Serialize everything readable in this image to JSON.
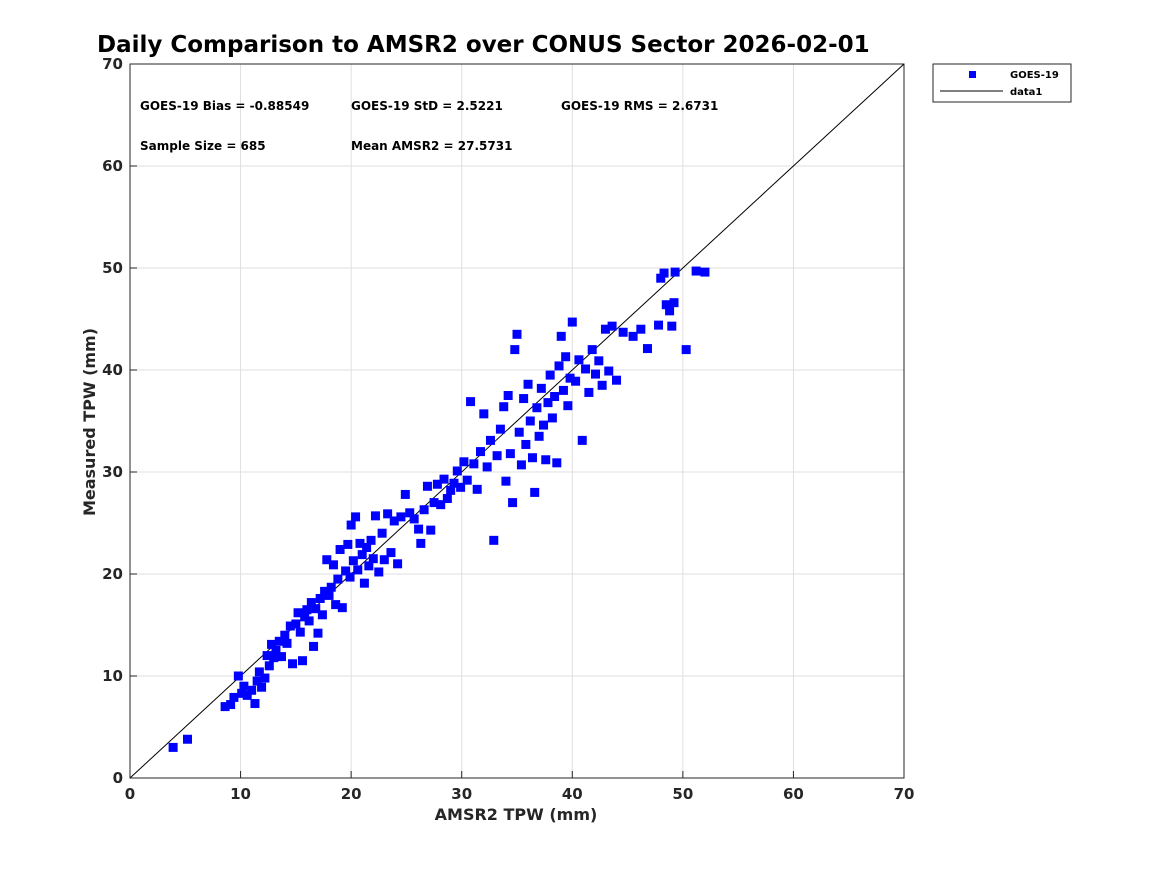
{
  "chart_data": {
    "type": "scatter",
    "title": "Daily Comparison to AMSR2 over CONUS Sector 2026-02-01",
    "xlabel": "AMSR2 TPW (mm)",
    "ylabel": "Measured TPW (mm)",
    "xlim": [
      0,
      70
    ],
    "ylim": [
      0,
      70
    ],
    "xticks": [
      "0",
      "10",
      "20",
      "30",
      "40",
      "50",
      "60",
      "70"
    ],
    "yticks": [
      "0",
      "10",
      "20",
      "30",
      "40",
      "50",
      "60",
      "70"
    ],
    "grid": true,
    "legend_position": "outside-top-right",
    "stats": {
      "bias": "GOES-19 Bias = -0.88549",
      "std": "GOES-19 StD = 2.5221",
      "rms": "GOES-19 RMS = 2.6731",
      "sample_size": "Sample Size = 685",
      "mean": "Mean AMSR2 = 27.5731"
    },
    "series": [
      {
        "name": "GOES-19",
        "marker": "square",
        "color": "#0000ff",
        "points": [
          [
            3.9,
            3.0
          ],
          [
            5.2,
            3.8
          ],
          [
            8.6,
            7.0
          ],
          [
            9.1,
            7.2
          ],
          [
            9.4,
            7.9
          ],
          [
            9.8,
            10.0
          ],
          [
            10.1,
            8.3
          ],
          [
            10.3,
            9.0
          ],
          [
            10.6,
            8.1
          ],
          [
            11.0,
            8.6
          ],
          [
            11.3,
            7.3
          ],
          [
            11.5,
            9.5
          ],
          [
            11.7,
            10.4
          ],
          [
            11.9,
            8.9
          ],
          [
            12.2,
            9.8
          ],
          [
            12.4,
            12.0
          ],
          [
            12.6,
            11.0
          ],
          [
            12.8,
            13.1
          ],
          [
            13.0,
            11.8
          ],
          [
            13.2,
            12.5
          ],
          [
            13.5,
            13.4
          ],
          [
            13.7,
            11.9
          ],
          [
            14.0,
            14.0
          ],
          [
            14.2,
            13.2
          ],
          [
            14.5,
            14.9
          ],
          [
            14.7,
            11.2
          ],
          [
            15.0,
            15.1
          ],
          [
            15.2,
            16.2
          ],
          [
            15.4,
            14.3
          ],
          [
            15.6,
            11.5
          ],
          [
            15.8,
            15.8
          ],
          [
            16.0,
            16.5
          ],
          [
            16.2,
            15.4
          ],
          [
            16.4,
            17.2
          ],
          [
            16.6,
            12.9
          ],
          [
            16.8,
            16.6
          ],
          [
            17.0,
            14.2
          ],
          [
            17.2,
            17.6
          ],
          [
            17.4,
            16.0
          ],
          [
            17.6,
            18.3
          ],
          [
            17.8,
            21.4
          ],
          [
            18.0,
            17.9
          ],
          [
            18.2,
            18.7
          ],
          [
            18.4,
            20.9
          ],
          [
            18.6,
            17.0
          ],
          [
            18.8,
            19.5
          ],
          [
            19.0,
            22.4
          ],
          [
            19.2,
            16.7
          ],
          [
            19.5,
            20.3
          ],
          [
            19.7,
            22.9
          ],
          [
            19.9,
            19.7
          ],
          [
            20.0,
            24.8
          ],
          [
            20.2,
            21.3
          ],
          [
            20.4,
            25.6
          ],
          [
            20.6,
            20.4
          ],
          [
            20.8,
            23.0
          ],
          [
            21.0,
            21.9
          ],
          [
            21.2,
            19.1
          ],
          [
            21.4,
            22.6
          ],
          [
            21.6,
            20.8
          ],
          [
            21.8,
            23.3
          ],
          [
            22.0,
            21.5
          ],
          [
            22.2,
            25.7
          ],
          [
            22.5,
            20.2
          ],
          [
            22.8,
            24.0
          ],
          [
            23.0,
            21.4
          ],
          [
            23.3,
            25.9
          ],
          [
            23.6,
            22.1
          ],
          [
            23.9,
            25.2
          ],
          [
            24.2,
            21.0
          ],
          [
            24.5,
            25.6
          ],
          [
            24.9,
            27.8
          ],
          [
            25.3,
            26.0
          ],
          [
            25.7,
            25.4
          ],
          [
            26.1,
            24.4
          ],
          [
            26.3,
            23.0
          ],
          [
            26.6,
            26.3
          ],
          [
            26.9,
            28.6
          ],
          [
            27.2,
            24.3
          ],
          [
            27.5,
            27.0
          ],
          [
            27.8,
            28.8
          ],
          [
            28.1,
            26.8
          ],
          [
            28.4,
            29.3
          ],
          [
            28.7,
            27.4
          ],
          [
            29.0,
            28.2
          ],
          [
            29.3,
            28.9
          ],
          [
            29.6,
            30.1
          ],
          [
            29.9,
            28.5
          ],
          [
            30.2,
            31.0
          ],
          [
            30.5,
            29.2
          ],
          [
            30.8,
            36.9
          ],
          [
            31.1,
            30.8
          ],
          [
            31.4,
            28.3
          ],
          [
            31.7,
            32.0
          ],
          [
            32.0,
            35.7
          ],
          [
            32.3,
            30.5
          ],
          [
            32.6,
            33.1
          ],
          [
            32.9,
            23.3
          ],
          [
            33.2,
            31.6
          ],
          [
            33.5,
            34.2
          ],
          [
            33.8,
            36.4
          ],
          [
            34.0,
            29.1
          ],
          [
            34.2,
            37.5
          ],
          [
            34.4,
            31.8
          ],
          [
            34.6,
            27.0
          ],
          [
            34.8,
            42.0
          ],
          [
            35.0,
            43.5
          ],
          [
            35.2,
            33.9
          ],
          [
            35.4,
            30.7
          ],
          [
            35.6,
            37.2
          ],
          [
            35.8,
            32.7
          ],
          [
            36.0,
            38.6
          ],
          [
            36.2,
            35.0
          ],
          [
            36.4,
            31.4
          ],
          [
            36.6,
            28.0
          ],
          [
            36.8,
            36.3
          ],
          [
            37.0,
            33.5
          ],
          [
            37.2,
            38.2
          ],
          [
            37.4,
            34.6
          ],
          [
            37.6,
            31.2
          ],
          [
            37.8,
            36.8
          ],
          [
            38.0,
            39.5
          ],
          [
            38.2,
            35.3
          ],
          [
            38.4,
            37.4
          ],
          [
            38.6,
            30.9
          ],
          [
            38.8,
            40.4
          ],
          [
            39.0,
            43.3
          ],
          [
            39.2,
            38.0
          ],
          [
            39.4,
            41.3
          ],
          [
            39.6,
            36.5
          ],
          [
            39.8,
            39.2
          ],
          [
            40.0,
            44.7
          ],
          [
            40.3,
            38.9
          ],
          [
            40.6,
            41.0
          ],
          [
            40.9,
            33.1
          ],
          [
            41.2,
            40.1
          ],
          [
            41.5,
            37.8
          ],
          [
            41.8,
            42.0
          ],
          [
            42.1,
            39.6
          ],
          [
            42.4,
            40.9
          ],
          [
            42.7,
            38.5
          ],
          [
            43.0,
            44.0
          ],
          [
            43.3,
            39.9
          ],
          [
            43.6,
            44.3
          ],
          [
            44.0,
            39.0
          ],
          [
            44.6,
            43.7
          ],
          [
            45.5,
            43.3
          ],
          [
            46.2,
            44.0
          ],
          [
            46.8,
            42.1
          ],
          [
            47.8,
            44.4
          ],
          [
            48.0,
            49.0
          ],
          [
            48.3,
            49.5
          ],
          [
            48.5,
            46.4
          ],
          [
            48.8,
            45.8
          ],
          [
            49.0,
            44.3
          ],
          [
            49.2,
            46.6
          ],
          [
            49.3,
            49.6
          ],
          [
            50.3,
            42.0
          ],
          [
            51.2,
            49.7
          ],
          [
            52.0,
            49.6
          ]
        ]
      },
      {
        "name": "data1",
        "line": true,
        "color": "#000000",
        "x": [
          0,
          70
        ],
        "y": [
          0,
          70
        ]
      }
    ]
  }
}
